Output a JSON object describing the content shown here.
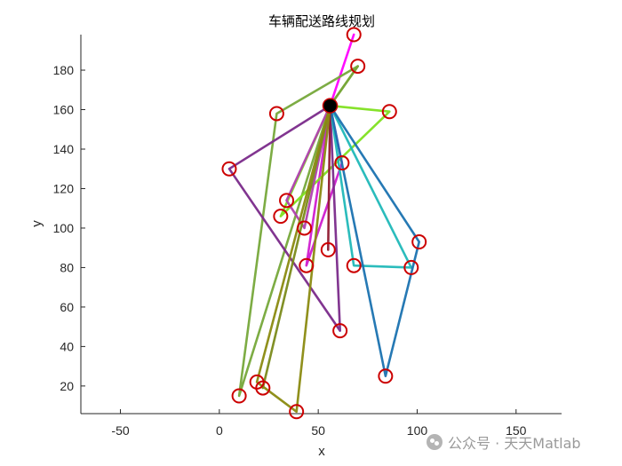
{
  "chart_data": {
    "type": "line",
    "title": "车辆配送路线规划",
    "xlabel": "x",
    "ylabel": "y",
    "xlim": [
      -70,
      173
    ],
    "ylim": [
      6,
      198
    ],
    "xticks": [
      -50,
      0,
      50,
      100,
      150
    ],
    "yticks": [
      20,
      40,
      60,
      80,
      100,
      120,
      140,
      160,
      180
    ],
    "grid": false,
    "depot": {
      "x": 56,
      "y": 162
    },
    "customers": [
      {
        "x": 68,
        "y": 198
      },
      {
        "x": 70,
        "y": 182
      },
      {
        "x": 29,
        "y": 158
      },
      {
        "x": 86,
        "y": 159
      },
      {
        "x": 5,
        "y": 130
      },
      {
        "x": 62,
        "y": 133
      },
      {
        "x": 34,
        "y": 114
      },
      {
        "x": 31,
        "y": 106
      },
      {
        "x": 43,
        "y": 100
      },
      {
        "x": 101,
        "y": 93
      },
      {
        "x": 55,
        "y": 89
      },
      {
        "x": 44,
        "y": 81
      },
      {
        "x": 68,
        "y": 81
      },
      {
        "x": 97,
        "y": 80
      },
      {
        "x": 61,
        "y": 48
      },
      {
        "x": 84,
        "y": 25
      },
      {
        "x": 19,
        "y": 22
      },
      {
        "x": 22,
        "y": 19
      },
      {
        "x": 10,
        "y": 15
      },
      {
        "x": 39,
        "y": 7
      }
    ],
    "routes": [
      {
        "color": "#ff00ff",
        "points": [
          [
            56,
            162
          ],
          [
            68,
            198
          ],
          [
            56,
            162
          ]
        ]
      },
      {
        "color": "#d01cd0",
        "points": [
          [
            56,
            162
          ],
          [
            62,
            133
          ],
          [
            44,
            81
          ],
          [
            56,
            162
          ]
        ]
      },
      {
        "color": "#8a9a2a",
        "points": [
          [
            56,
            162
          ],
          [
            70,
            182
          ],
          [
            56,
            162
          ]
        ]
      },
      {
        "color": "#76a83a",
        "points": [
          [
            56,
            162
          ],
          [
            70,
            182
          ],
          [
            29,
            158
          ],
          [
            10,
            15
          ],
          [
            56,
            162
          ]
        ]
      },
      {
        "color": "#80e020",
        "points": [
          [
            56,
            162
          ],
          [
            86,
            159
          ],
          [
            31,
            106
          ],
          [
            56,
            162
          ]
        ]
      },
      {
        "color": "#b040b0",
        "points": [
          [
            56,
            162
          ],
          [
            34,
            114
          ],
          [
            43,
            100
          ],
          [
            56,
            162
          ]
        ]
      },
      {
        "color": "#7a2a8a",
        "points": [
          [
            56,
            162
          ],
          [
            5,
            130
          ],
          [
            61,
            48
          ],
          [
            56,
            162
          ]
        ]
      },
      {
        "color": "#20b8b8",
        "points": [
          [
            56,
            162
          ],
          [
            68,
            81
          ],
          [
            97,
            80
          ],
          [
            56,
            162
          ]
        ]
      },
      {
        "color": "#1a72b0",
        "points": [
          [
            56,
            162
          ],
          [
            101,
            93
          ],
          [
            84,
            25
          ],
          [
            56,
            162
          ]
        ]
      },
      {
        "color": "#901a30",
        "points": [
          [
            56,
            162
          ],
          [
            55,
            89
          ],
          [
            56,
            162
          ]
        ]
      },
      {
        "color": "#7a8a1a",
        "points": [
          [
            56,
            162
          ],
          [
            22,
            19
          ],
          [
            56,
            162
          ]
        ]
      },
      {
        "color": "#8a8a10",
        "points": [
          [
            56,
            162
          ],
          [
            39,
            7
          ],
          [
            19,
            22
          ],
          [
            56,
            162
          ]
        ]
      }
    ],
    "marker_color": "#cc0000",
    "depot_color": "#000000"
  },
  "watermark": "公众号 · 天天Matlab"
}
